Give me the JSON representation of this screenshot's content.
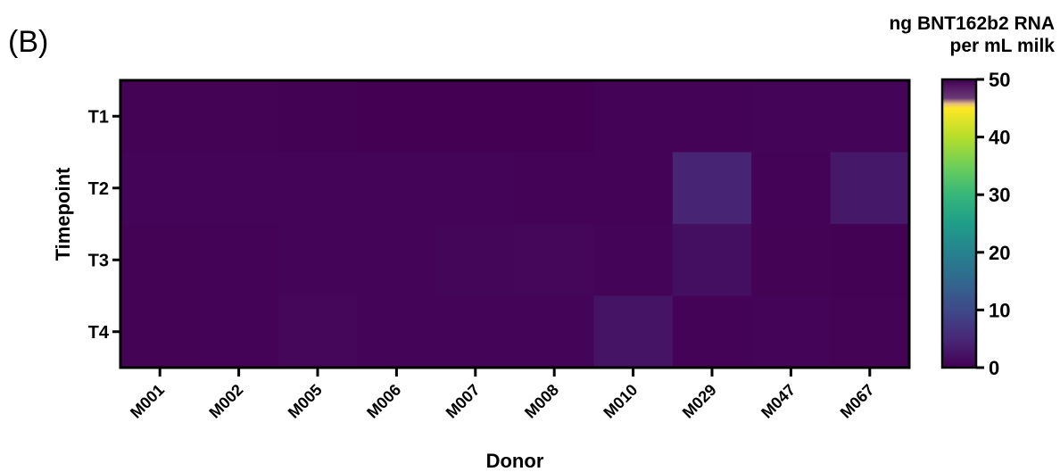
{
  "panel_label": "(B)",
  "colorbar": {
    "title_line1": "ng BNT162b2 RNA",
    "title_line2": "per mL milk",
    "ticks": [
      "0",
      "10",
      "20",
      "30",
      "40",
      "50"
    ],
    "colormap": "viridis",
    "range": [
      0,
      50
    ]
  },
  "chart_data": {
    "type": "heatmap",
    "title": "",
    "xlabel": "Donor",
    "ylabel": "Timepoint",
    "x": [
      "M001",
      "M002",
      "M005",
      "M006",
      "M007",
      "M008",
      "M010",
      "M029",
      "M047",
      "M067"
    ],
    "y": [
      "T1",
      "T2",
      "T3",
      "T4"
    ],
    "values": [
      [
        0.2,
        0.2,
        0.1,
        0.0,
        0.0,
        0.0,
        0.3,
        0.3,
        0.5,
        0.4
      ],
      [
        0.4,
        0.5,
        0.4,
        0.4,
        0.4,
        0.3,
        0.3,
        4.5,
        0.3,
        3.0
      ],
      [
        0.2,
        0.3,
        0.4,
        0.4,
        0.6,
        0.8,
        0.4,
        1.8,
        0.2,
        0.1
      ],
      [
        0.2,
        0.3,
        0.8,
        0.5,
        0.5,
        0.4,
        2.4,
        0.3,
        0.5,
        0.2
      ]
    ],
    "color_range": [
      0,
      50
    ]
  }
}
